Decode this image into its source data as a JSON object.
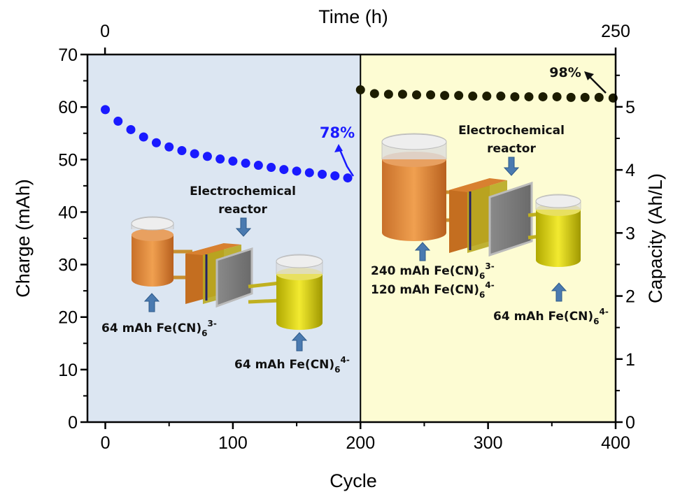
{
  "chart_data": {
    "type": "scatter",
    "title": "Time (h)",
    "x_label": "Cycle",
    "y_label": "Charge (mAh)",
    "y2_label": "Capacity (Ah/L)",
    "xlim": [
      -14,
      400
    ],
    "xticks": [
      0,
      100,
      200,
      300,
      400
    ],
    "xminorticks": [
      50,
      150,
      250,
      350
    ],
    "x2lim": [
      -8.6,
      250
    ],
    "x2ticks": [
      0,
      250
    ],
    "ylim": [
      0,
      70
    ],
    "yticks": [
      0,
      10,
      20,
      30,
      40,
      50,
      60,
      70
    ],
    "yminorticks": [
      5,
      15,
      25,
      35,
      45,
      55,
      65
    ],
    "y2lim": [
      0,
      5.83
    ],
    "y2ticks": [
      0,
      1,
      2,
      3,
      4,
      5
    ],
    "y2minorticks": [
      0.5,
      1.5,
      2.5,
      3.5,
      4.5,
      5.5
    ],
    "regions": [
      {
        "from": -14,
        "to": 200,
        "color": "#dce6f2"
      },
      {
        "from": 200,
        "to": 400,
        "color": "#fdfcd3"
      }
    ],
    "divider": 200,
    "series": [
      {
        "color": "#1a1aff",
        "x": [
          0,
          10,
          20,
          30,
          40,
          50,
          60,
          70,
          80,
          90,
          100,
          110,
          120,
          130,
          140,
          150,
          160,
          170,
          180,
          190
        ],
        "values": [
          59.5,
          57.3,
          55.7,
          54.3,
          53.2,
          52.4,
          51.7,
          51.1,
          50.6,
          50.1,
          49.7,
          49.3,
          48.9,
          48.5,
          48.1,
          47.8,
          47.5,
          47.2,
          46.9,
          46.5
        ]
      },
      {
        "color": "#1c1c00",
        "axis": "y2",
        "x": [
          200,
          211,
          222,
          233,
          244,
          255,
          266,
          277,
          288,
          299,
          310,
          321,
          332,
          343,
          354,
          365,
          376,
          387,
          398
        ],
        "values": [
          5.27,
          5.21,
          5.2,
          5.2,
          5.19,
          5.19,
          5.18,
          5.18,
          5.17,
          5.17,
          5.17,
          5.16,
          5.16,
          5.16,
          5.16,
          5.15,
          5.15,
          5.15,
          5.14
        ]
      }
    ],
    "annotations": {
      "retention_left": "78%",
      "retention_right": "98%",
      "reactor_left": [
        "Electrochemical",
        "reactor"
      ],
      "reactor_right": [
        "Electrochemical",
        "reactor"
      ],
      "tank_left_1": {
        "text": "64 mAh Fe(CN)",
        "sub": "6",
        "sup": "3-"
      },
      "tank_left_2": {
        "text": "64 mAh Fe(CN)",
        "sub": "6",
        "sup": "4-"
      },
      "tank_right_1a": {
        "text": "240 mAh Fe(CN)",
        "sub": "6",
        "sup": "3-"
      },
      "tank_right_1b": {
        "text": "120 mAh Fe(CN)",
        "sub": "6",
        "sup": "4-"
      },
      "tank_right_2": {
        "text": "64 mAh Fe(CN)",
        "sub": "6",
        "sup": "4-"
      }
    }
  }
}
